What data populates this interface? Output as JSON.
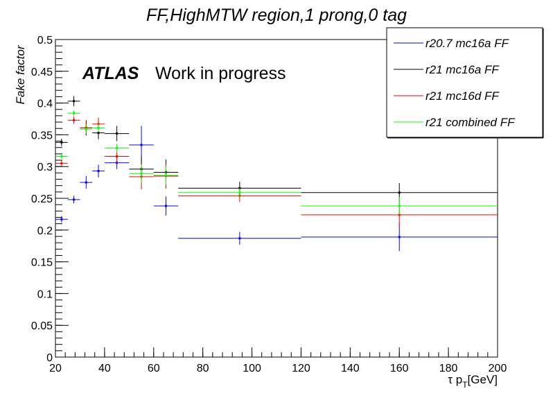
{
  "chart_data": {
    "type": "scatter",
    "title": "FF,HighMTW region,1 prong,0 tag",
    "xlabel_prefix": "τ p",
    "xlabel_sub": "T",
    "xlabel_unit": "[GeV]",
    "ylabel": "Fake factor",
    "annotation_bold": "ATLAS",
    "annotation": "Work in progress",
    "xlim": [
      20,
      200
    ],
    "ylim": [
      0,
      0.5
    ],
    "x_ticks": [
      20,
      40,
      60,
      80,
      100,
      120,
      140,
      160,
      180,
      200
    ],
    "x_tick_labels": [
      "20",
      "40",
      "60",
      "80",
      "100",
      "120",
      "140",
      "160",
      "180",
      "200"
    ],
    "y_ticks": [
      0,
      0.05,
      0.1,
      0.15,
      0.2,
      0.25,
      0.3,
      0.35,
      0.4,
      0.45,
      0.5
    ],
    "y_tick_labels": [
      "0",
      "0.05",
      "0.1",
      "0.15",
      "0.2",
      "0.25",
      "0.3",
      "0.35",
      "0.4",
      "0.45",
      "0.5"
    ],
    "grid": false,
    "legend_position": "top-right",
    "bins": [
      [
        20,
        25
      ],
      [
        25,
        30
      ],
      [
        30,
        35
      ],
      [
        35,
        40
      ],
      [
        40,
        50
      ],
      [
        50,
        60
      ],
      [
        60,
        70
      ],
      [
        70,
        120
      ],
      [
        120,
        200
      ]
    ],
    "x": [
      22.5,
      27.5,
      32.5,
      37.5,
      45,
      55,
      65,
      95,
      160
    ],
    "series": [
      {
        "name": "r20.7 mc16a FF",
        "color": "#0000ff",
        "values": [
          0.217,
          0.248,
          0.275,
          0.293,
          0.306,
          0.334,
          0.238,
          0.187,
          0.189
        ],
        "errors": [
          0.005,
          0.006,
          0.01,
          0.01,
          0.01,
          0.03,
          0.015,
          0.01,
          0.022
        ]
      },
      {
        "name": "r21 mc16a FF",
        "color": "#000000",
        "values": [
          0.338,
          0.403,
          0.361,
          0.353,
          0.352,
          0.296,
          0.291,
          0.266,
          0.259
        ],
        "errors": [
          0.006,
          0.008,
          0.012,
          0.01,
          0.012,
          0.02,
          0.02,
          0.01,
          0.015
        ]
      },
      {
        "name": "r21 mc16d FF",
        "color": "#ff0000",
        "values": [
          0.305,
          0.373,
          0.361,
          0.367,
          0.316,
          0.284,
          0.285,
          0.254,
          0.224
        ],
        "errors": [
          0.005,
          0.006,
          0.01,
          0.01,
          0.01,
          0.02,
          0.02,
          0.01,
          0.02
        ]
      },
      {
        "name": "r21 combined FF",
        "color": "#00ff00",
        "values": [
          0.316,
          0.384,
          0.359,
          0.361,
          0.329,
          0.289,
          0.286,
          0.259,
          0.238
        ],
        "errors": [
          0.004,
          0.004,
          0.007,
          0.007,
          0.007,
          0.014,
          0.014,
          0.007,
          0.014
        ]
      }
    ]
  }
}
